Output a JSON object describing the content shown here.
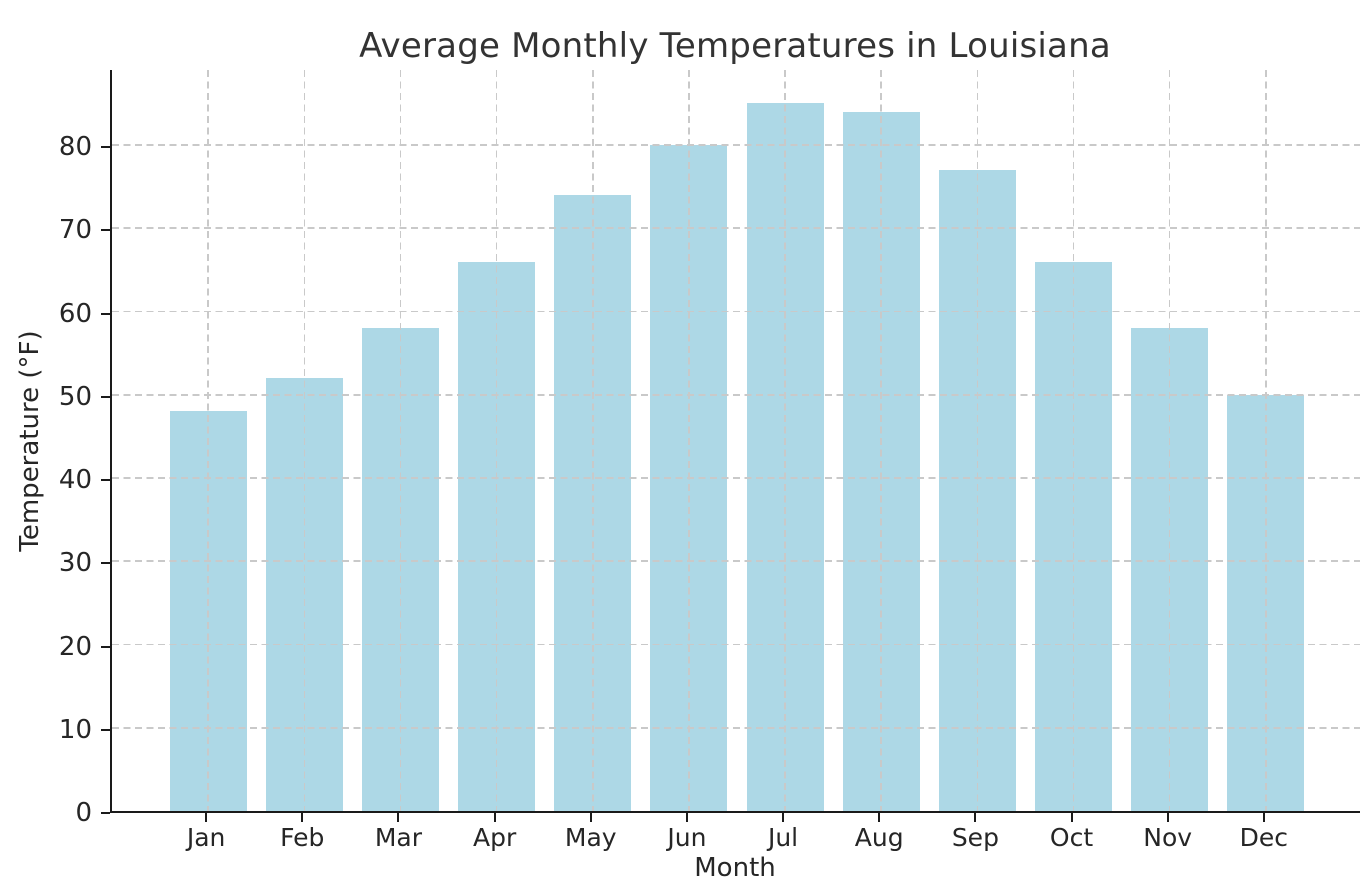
{
  "chart_data": {
    "type": "bar",
    "title": "Average Monthly Temperatures in Louisiana",
    "xlabel": "Month",
    "ylabel": "Temperature (°F)",
    "categories": [
      "Jan",
      "Feb",
      "Mar",
      "Apr",
      "May",
      "Jun",
      "Jul",
      "Aug",
      "Sep",
      "Oct",
      "Nov",
      "Dec"
    ],
    "values": [
      48,
      52,
      58,
      66,
      74,
      80,
      85,
      84,
      77,
      66,
      58,
      50
    ],
    "yticks": [
      0,
      10,
      20,
      30,
      40,
      50,
      60,
      70,
      80
    ],
    "ylim": [
      0,
      89.25
    ],
    "bar_color": "#ADD8E6",
    "bar_width_fraction": 0.8,
    "grid": "dashed, both axes, drawn above bars",
    "grid_color": "#c9c9c9",
    "spine_color": "#1a1a1a",
    "text_color": "#262626",
    "legend": "none"
  }
}
